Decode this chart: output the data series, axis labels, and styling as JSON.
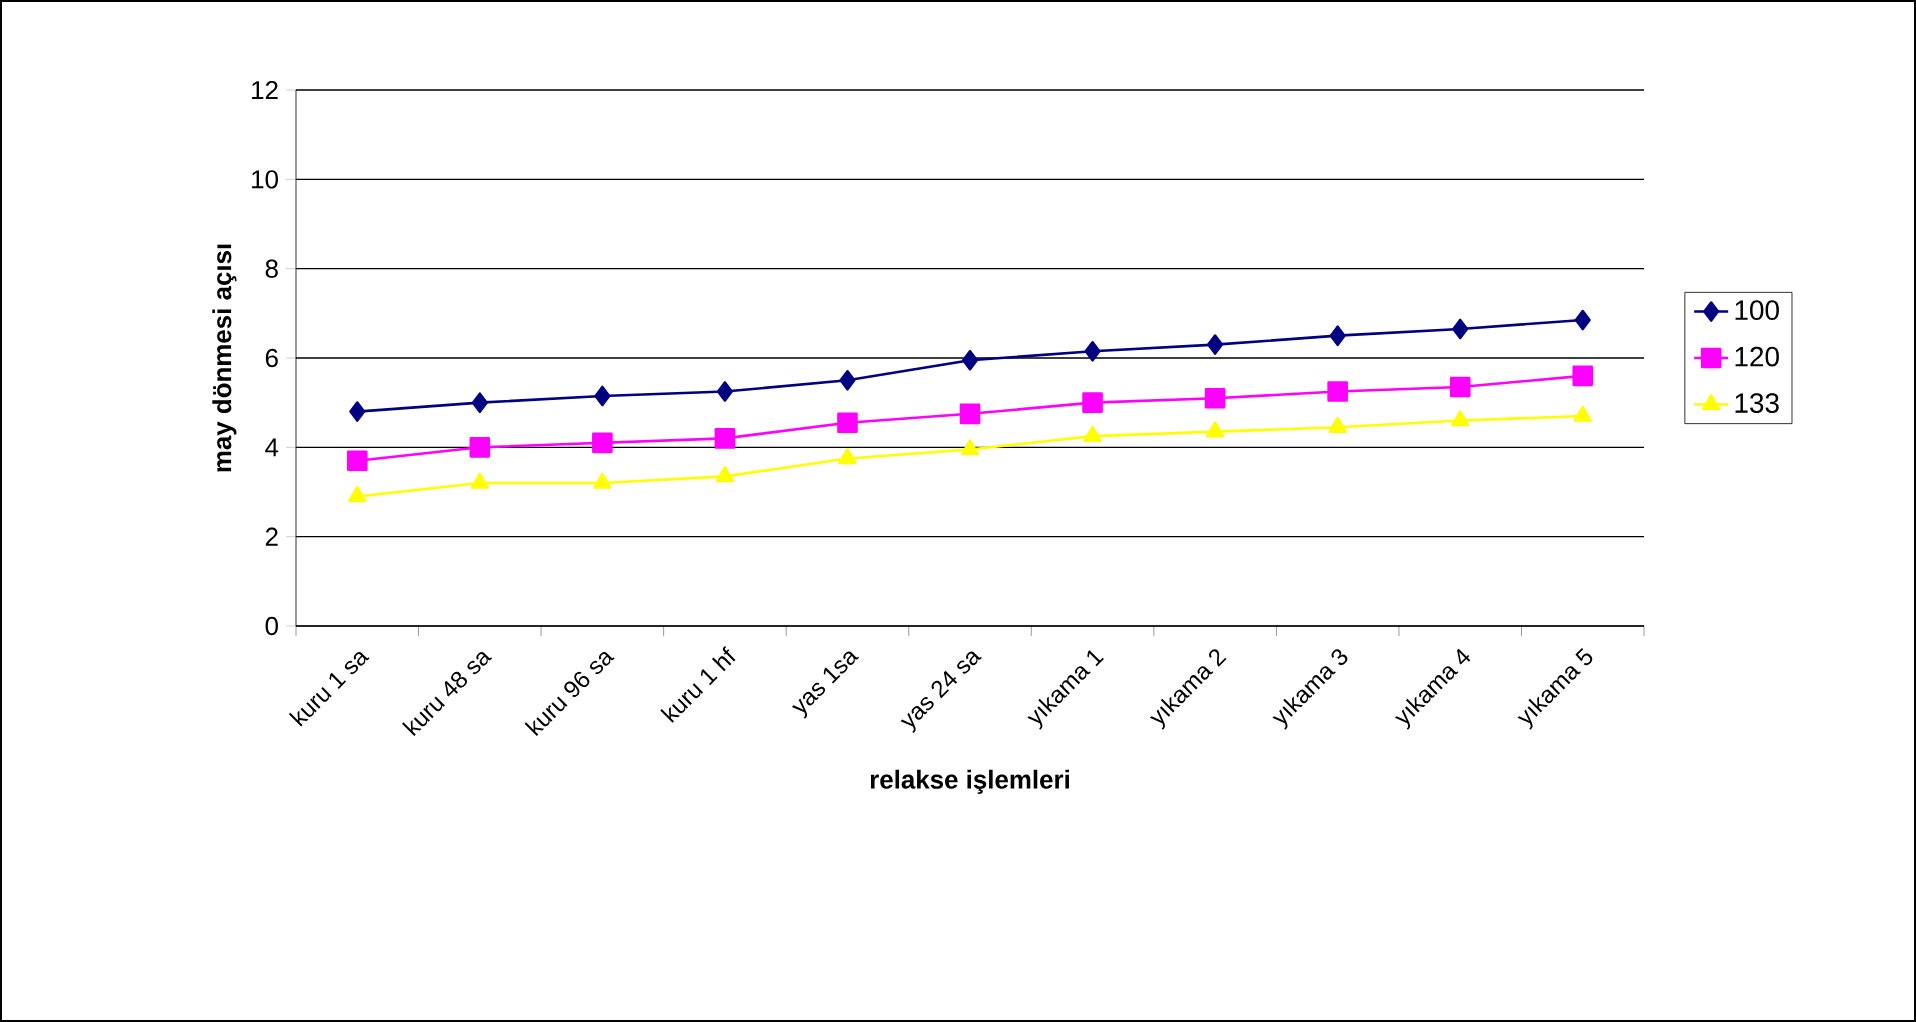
{
  "chart_data": {
    "type": "line",
    "xlabel": "relakse işlemleri",
    "ylabel": "may dönmesi açısı",
    "categories": [
      "kuru 1 sa",
      "kuru 48 sa",
      "kuru 96 sa",
      "kuru 1 hf",
      "yas 1sa",
      "yas 24 sa",
      "yıkama 1",
      "yıkama 2",
      "yıkama 3",
      "yıkama 4",
      "yıkama 5"
    ],
    "series": [
      {
        "name": "100",
        "color": "#000080",
        "marker": "diamond",
        "values": [
          4.8,
          5.0,
          5.15,
          5.25,
          5.5,
          5.95,
          6.15,
          6.3,
          6.5,
          6.65,
          6.85
        ]
      },
      {
        "name": "120",
        "color": "#ff00ff",
        "marker": "square",
        "values": [
          3.7,
          4.0,
          4.1,
          4.2,
          4.55,
          4.75,
          5.0,
          5.1,
          5.25,
          5.35,
          5.6
        ]
      },
      {
        "name": "133",
        "color": "#ffff00",
        "marker": "triangle",
        "values": [
          2.9,
          3.2,
          3.2,
          3.35,
          3.75,
          3.95,
          4.25,
          4.35,
          4.45,
          4.6,
          4.7
        ]
      }
    ],
    "ylim": [
      0,
      12
    ],
    "yticks": [
      0,
      2,
      4,
      6,
      8,
      10,
      12
    ],
    "grid": "y",
    "legend": "right",
    "line_style": "solid"
  }
}
